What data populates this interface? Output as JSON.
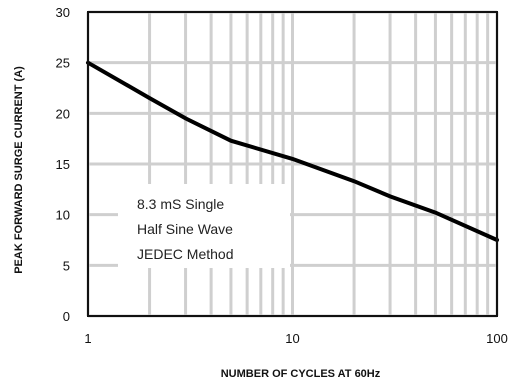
{
  "chart_data": {
    "type": "line",
    "title": "",
    "xlabel": "NUMBER OF CYCLES AT 60Hz",
    "ylabel": "PEAK FORWARD SURGE CURRENT (A)",
    "x_scale": "log",
    "xlim": [
      1,
      100
    ],
    "ylim": [
      0,
      30
    ],
    "grid": true,
    "x_ticks": [
      1,
      10,
      100
    ],
    "x_tick_labels": [
      "1",
      "10",
      "100"
    ],
    "y_ticks": [
      0,
      5,
      10,
      15,
      20,
      25,
      30
    ],
    "y_tick_labels": [
      "0",
      "5",
      "10",
      "15",
      "20",
      "25",
      "30"
    ],
    "series": [
      {
        "x": [
          1,
          2,
          3,
          5,
          10,
          20,
          30,
          50,
          100
        ],
        "values": [
          25,
          21.5,
          19.5,
          17.3,
          15.5,
          13.3,
          11.8,
          10.2,
          7.5
        ]
      }
    ],
    "annotation": [
      "8.3 mS Single",
      "Half Sine Wave",
      "JEDEC Method"
    ]
  }
}
